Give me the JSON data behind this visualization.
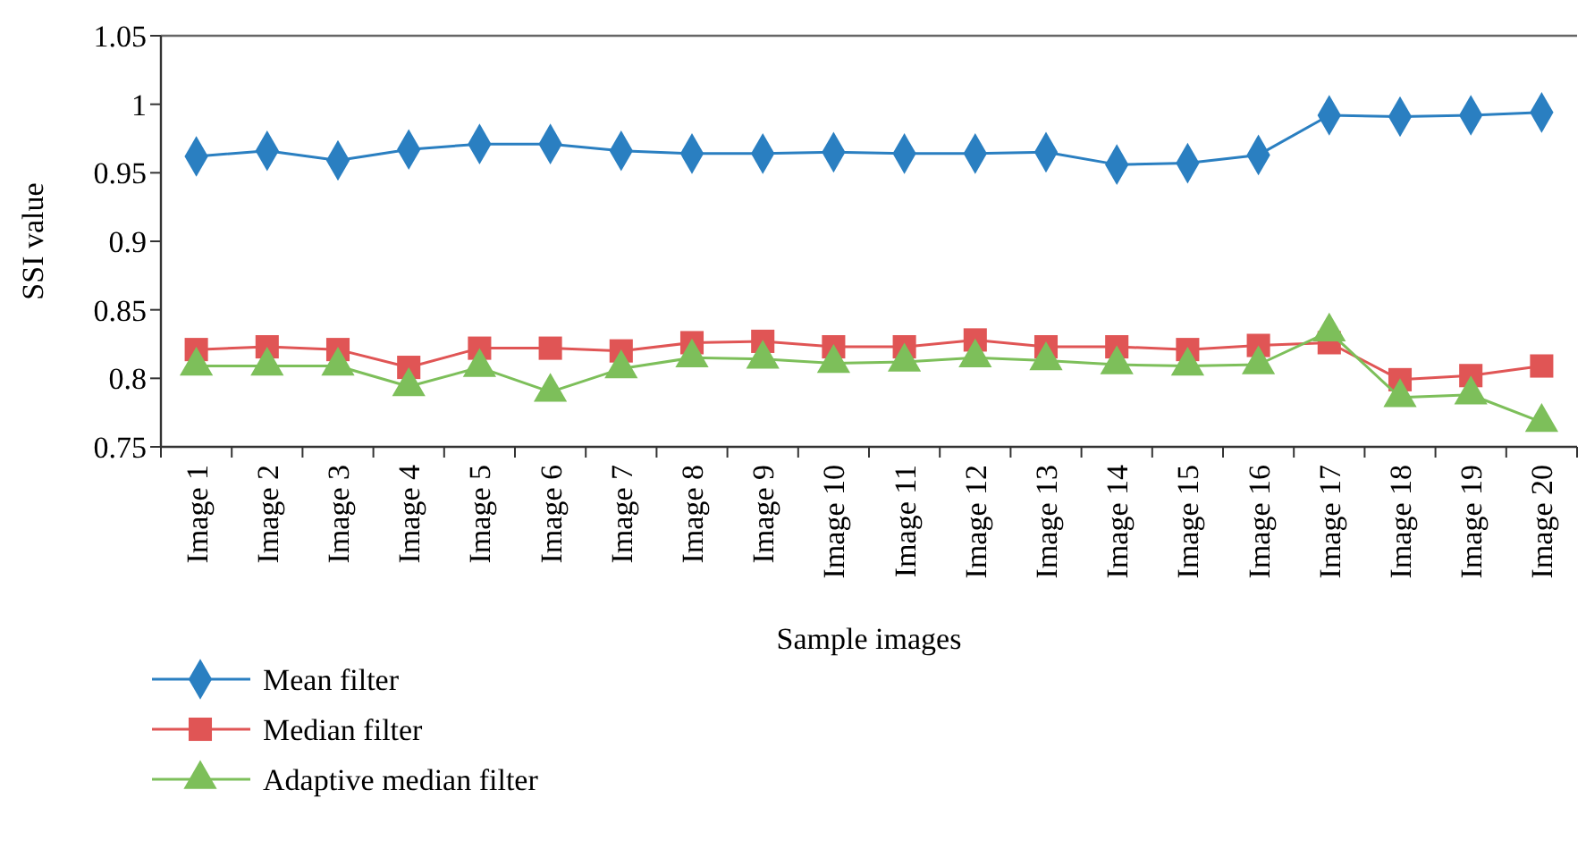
{
  "chart_data": {
    "type": "line",
    "xlabel": "Sample images",
    "ylabel": "SSI value",
    "categories": [
      "Image 1",
      "Image 2",
      "Image 3",
      "Image 4",
      "Image 5",
      "Image 6",
      "Image 7",
      "Image 8",
      "Image 9",
      "Image 10",
      "Image 11",
      "Image 12",
      "Image 13",
      "Image 14",
      "Image 15",
      "Image 16",
      "Image 17",
      "Image 18",
      "Image 19",
      "Image 20"
    ],
    "ylim": [
      0.75,
      1.05
    ],
    "yticks": [
      {
        "value": 0.75,
        "label": "0.75"
      },
      {
        "value": 0.8,
        "label": "0.8"
      },
      {
        "value": 0.85,
        "label": "0.85"
      },
      {
        "value": 0.9,
        "label": "0.9"
      },
      {
        "value": 0.95,
        "label": "0.95"
      },
      {
        "value": 1,
        "label": "1"
      },
      {
        "value": 1.05,
        "label": "1.05"
      }
    ],
    "grid": false,
    "legend": "bottom left",
    "series": [
      {
        "name": "Mean filter",
        "color": "#2a7fc1",
        "marker": "diamond",
        "values": [
          0.962,
          0.966,
          0.959,
          0.967,
          0.971,
          0.971,
          0.966,
          0.964,
          0.964,
          0.965,
          0.964,
          0.964,
          0.965,
          0.956,
          0.957,
          0.963,
          0.992,
          0.991,
          0.992,
          0.994
        ]
      },
      {
        "name": "Median filter",
        "color": "#e05555",
        "marker": "square",
        "values": [
          0.821,
          0.823,
          0.821,
          0.808,
          0.822,
          0.822,
          0.82,
          0.826,
          0.827,
          0.823,
          0.823,
          0.828,
          0.823,
          0.823,
          0.821,
          0.824,
          0.826,
          0.799,
          0.802,
          0.809
        ]
      },
      {
        "name": "Adaptive median filter",
        "color": "#7dbf5a",
        "marker": "triangle",
        "values": [
          0.809,
          0.809,
          0.809,
          0.794,
          0.808,
          0.79,
          0.807,
          0.815,
          0.814,
          0.811,
          0.812,
          0.815,
          0.813,
          0.81,
          0.809,
          0.81,
          0.834,
          0.786,
          0.788,
          0.768
        ]
      }
    ]
  }
}
